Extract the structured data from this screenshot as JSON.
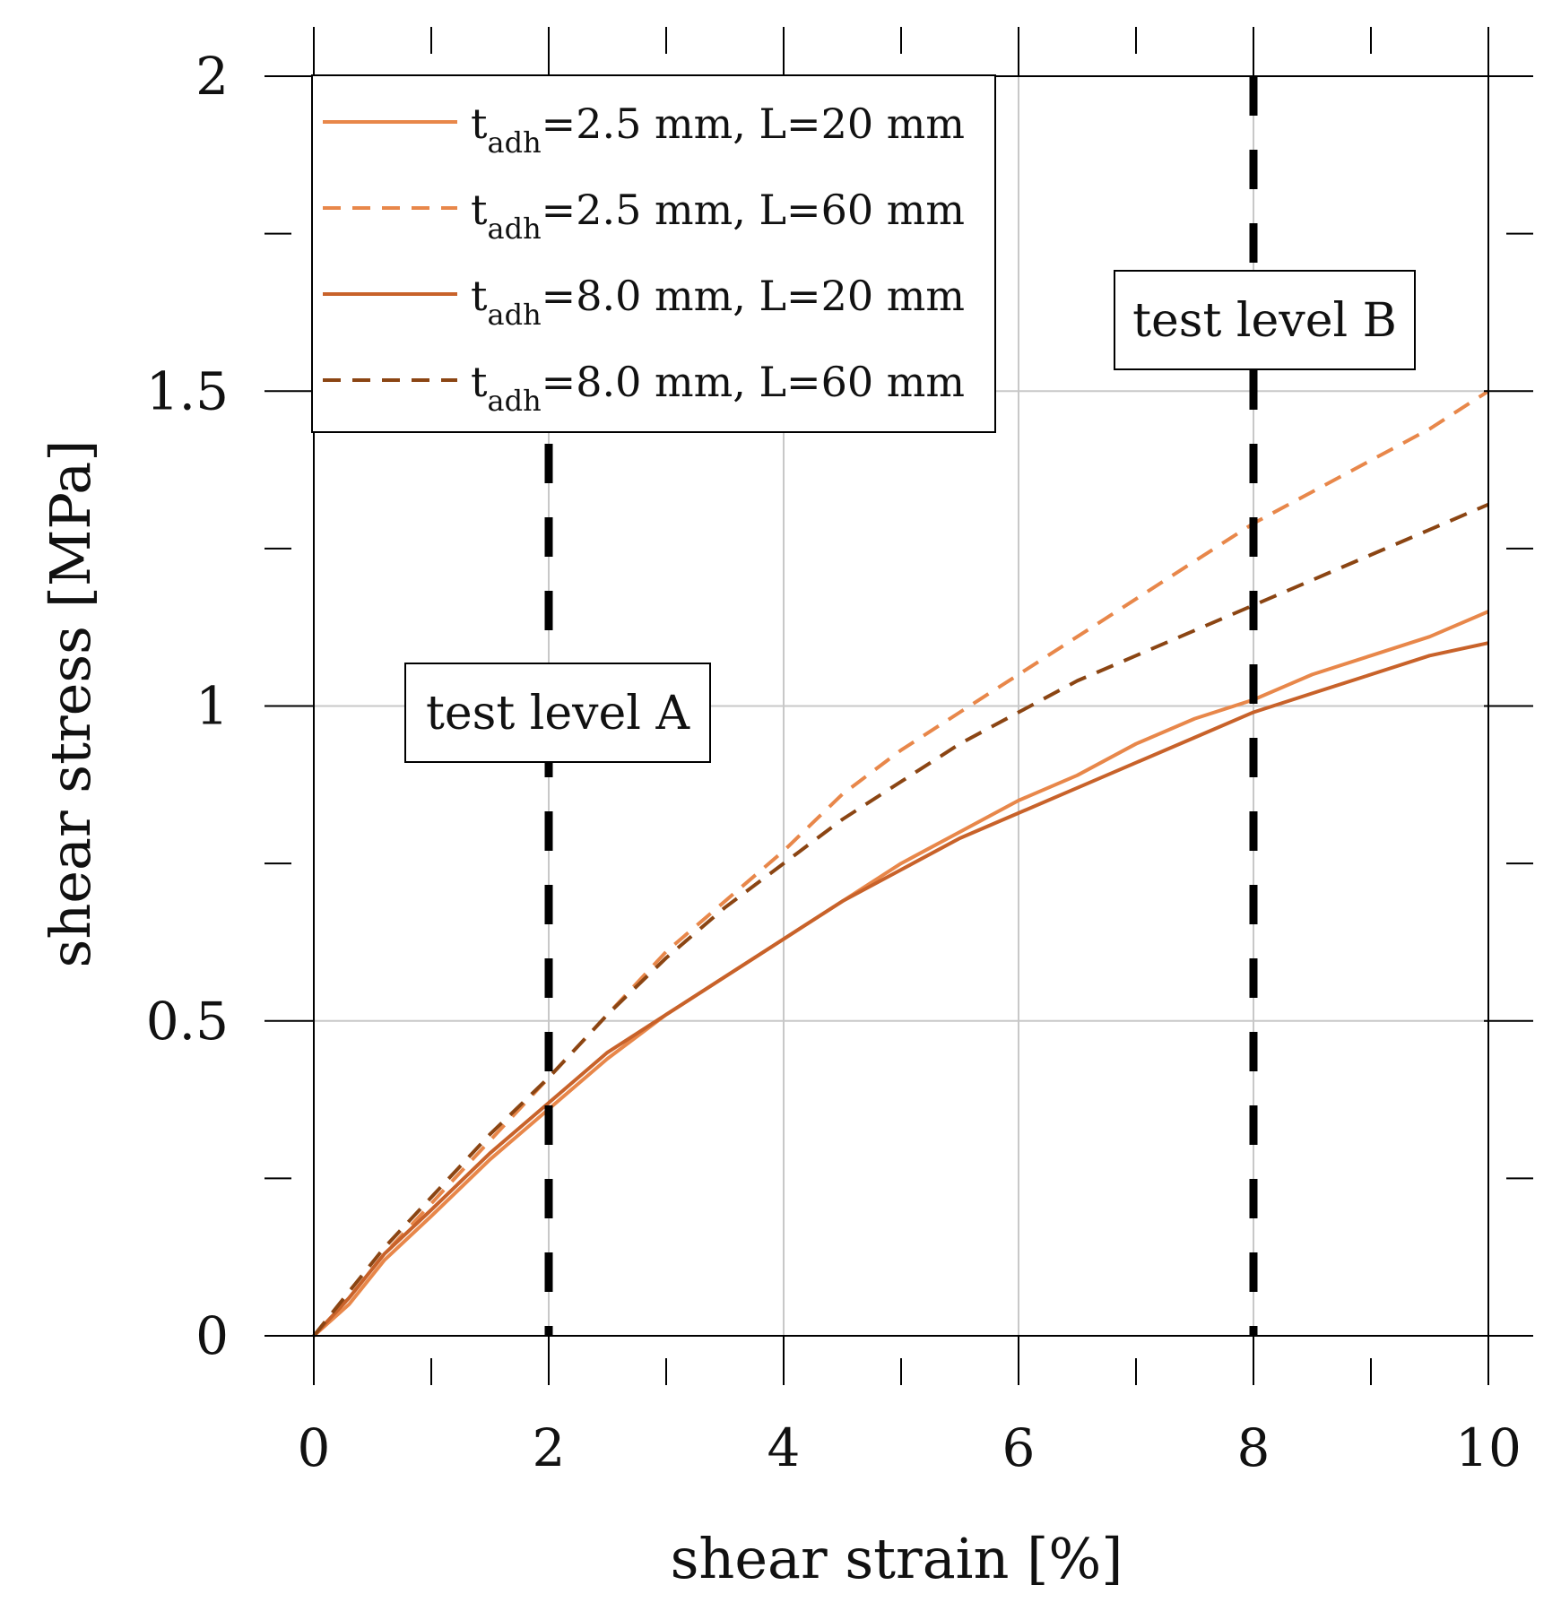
{
  "chart_data": {
    "type": "line",
    "title": "",
    "xlabel": "shear strain [%]",
    "ylabel": "shear stress [MPa]",
    "xlim": [
      0,
      10
    ],
    "ylim": [
      0,
      2
    ],
    "x_major_ticks": [
      0,
      2,
      4,
      6,
      8,
      10
    ],
    "x_tick_labels": [
      "0",
      "2",
      "4",
      "6",
      "8",
      "10"
    ],
    "y_major_ticks": [
      0,
      0.5,
      1,
      1.5,
      2
    ],
    "y_tick_labels": [
      "0",
      "0.5",
      "1",
      "1.5",
      "2"
    ],
    "grid": true,
    "legend_position": "top-left",
    "series": [
      {
        "name": "t_adh=2.5 mm, L=20 mm",
        "label_main": "t",
        "label_sub": "adh",
        "label_rest": "=2.5 mm, L=20 mm",
        "color": "#E8874A",
        "dash": "solid",
        "x": [
          0,
          0.3,
          0.6,
          1,
          1.5,
          2,
          2.5,
          3,
          3.5,
          4,
          4.5,
          5,
          5.5,
          6,
          6.5,
          7,
          7.5,
          8,
          8.5,
          9,
          9.5,
          10
        ],
        "y": [
          0,
          0.05,
          0.12,
          0.19,
          0.28,
          0.36,
          0.44,
          0.51,
          0.57,
          0.63,
          0.69,
          0.75,
          0.8,
          0.85,
          0.89,
          0.94,
          0.98,
          1.01,
          1.05,
          1.08,
          1.11,
          1.15
        ]
      },
      {
        "name": "t_adh=2.5 mm, L=60 mm",
        "label_main": "t",
        "label_sub": "adh",
        "label_rest": "=2.5 mm, L=60 mm",
        "color": "#E8874A",
        "dash": "dashed",
        "x": [
          0,
          0.3,
          0.6,
          1,
          1.5,
          2,
          2.5,
          3,
          3.5,
          4,
          4.5,
          5,
          5.5,
          6,
          6.5,
          7,
          7.5,
          8,
          8.5,
          9,
          9.5,
          10
        ],
        "y": [
          0,
          0.06,
          0.13,
          0.21,
          0.31,
          0.41,
          0.51,
          0.61,
          0.69,
          0.77,
          0.86,
          0.93,
          0.99,
          1.05,
          1.11,
          1.17,
          1.23,
          1.29,
          1.34,
          1.39,
          1.44,
          1.5
        ]
      },
      {
        "name": "t_adh=8.0 mm, L=20 mm",
        "label_main": "t",
        "label_sub": "adh",
        "label_rest": "=8.0 mm, L=20 mm",
        "color": "#C8622A",
        "dash": "solid",
        "x": [
          0,
          0.3,
          0.6,
          1,
          1.5,
          2,
          2.5,
          3,
          3.5,
          4,
          4.5,
          5,
          5.5,
          6,
          6.5,
          7,
          7.5,
          8,
          8.5,
          9,
          9.5,
          10
        ],
        "y": [
          0,
          0.06,
          0.13,
          0.2,
          0.29,
          0.37,
          0.45,
          0.51,
          0.57,
          0.63,
          0.69,
          0.74,
          0.79,
          0.83,
          0.87,
          0.91,
          0.95,
          0.99,
          1.02,
          1.05,
          1.08,
          1.1
        ]
      },
      {
        "name": "t_adh=8.0 mm, L=60 mm",
        "label_main": "t",
        "label_sub": "adh",
        "label_rest": "=8.0 mm, L=60 mm",
        "color": "#8B4513",
        "dash": "dashed",
        "x": [
          0,
          0.3,
          0.6,
          1,
          1.5,
          2,
          2.5,
          3,
          3.5,
          4,
          4.5,
          5,
          5.5,
          6,
          6.5,
          7,
          7.5,
          8,
          8.5,
          9,
          9.5,
          10
        ],
        "y": [
          0,
          0.07,
          0.14,
          0.22,
          0.32,
          0.41,
          0.51,
          0.6,
          0.68,
          0.75,
          0.82,
          0.88,
          0.94,
          0.99,
          1.04,
          1.08,
          1.12,
          1.16,
          1.2,
          1.24,
          1.28,
          1.32
        ]
      }
    ],
    "annotations": [
      {
        "text": "test level A",
        "x_line": 2
      },
      {
        "text": "test level B",
        "x_line": 8
      }
    ]
  }
}
